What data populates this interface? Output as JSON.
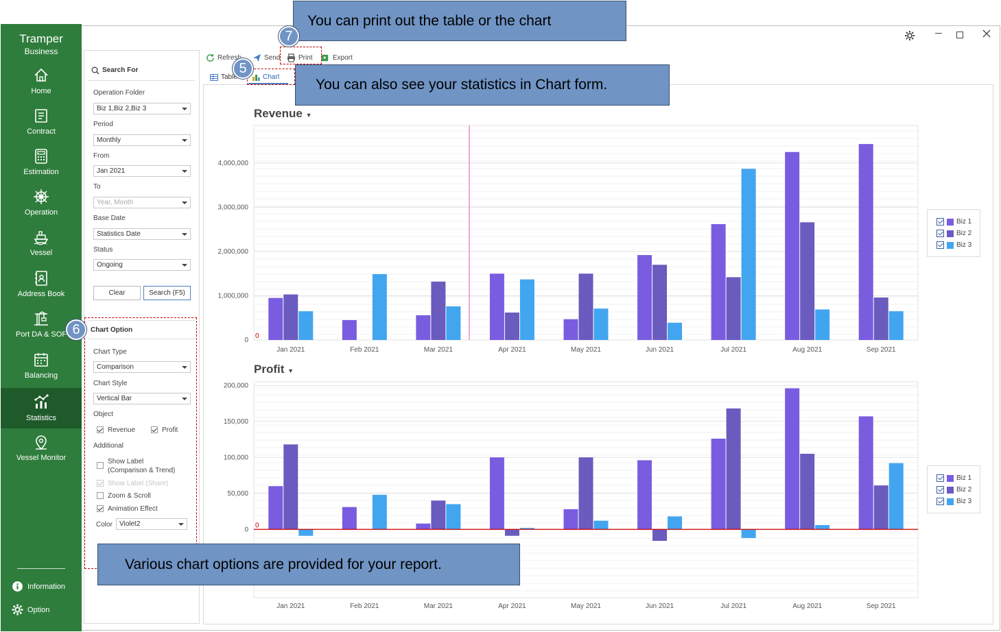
{
  "brand": {
    "name": "Tramper",
    "sub": "Business"
  },
  "nav": [
    {
      "label": "Home",
      "icon": "home-icon"
    },
    {
      "label": "Contract",
      "icon": "contract-icon"
    },
    {
      "label": "Estimation",
      "icon": "calculator-icon"
    },
    {
      "label": "Operation",
      "icon": "ship-wheel-icon"
    },
    {
      "label": "Vessel",
      "icon": "ship-icon"
    },
    {
      "label": "Address Book",
      "icon": "address-book-icon"
    },
    {
      "label": "Port DA & SOF",
      "icon": "port-crane-icon"
    },
    {
      "label": "Balancing",
      "icon": "calendar-icon"
    },
    {
      "label": "Statistics",
      "icon": "statistics-icon"
    },
    {
      "label": "Vessel Monitor",
      "icon": "location-pin-icon"
    }
  ],
  "footer": {
    "information": "Information",
    "option": "Option"
  },
  "search": {
    "title": "Search For",
    "operation_folder_label": "Operation Folder",
    "operation_folder": "Biz 1,Biz 2,Biz 3",
    "period_label": "Period",
    "period": "Monthly",
    "from_label": "From",
    "from": "Jan 2021",
    "to_label": "To",
    "to_placeholder": "Year, Month",
    "base_date_label": "Base Date",
    "base_date": "Statistics Date",
    "status_label": "Status",
    "status": "Ongoing",
    "clear": "Clear",
    "search_btn": "Search (F5)"
  },
  "chart_option": {
    "title": "Chart Option",
    "chart_type_label": "Chart Type",
    "chart_type": "Comparison",
    "chart_style_label": "Chart Style",
    "chart_style": "Vertical Bar",
    "object_label": "Object",
    "revenue": "Revenue",
    "profit": "Profit",
    "additional_label": "Additional",
    "show_label_1": "Show Label",
    "show_label_2": "(Comparison & Trend)",
    "show_label_share": "Show Label (Share)",
    "zoom": "Zoom & Scroll",
    "animation": "Animation Effect",
    "color_label": "Color",
    "color": "Violet2"
  },
  "toolbar": {
    "refresh": "Refresh",
    "send": "Send",
    "print": "Print",
    "export": "Export"
  },
  "tabs": {
    "table": "Table",
    "chart": "Chart"
  },
  "callouts": {
    "print": "You can print out the table or the chart",
    "chart": "You can also see your statistics in Chart form.",
    "options": "Various chart options are provided for your report.",
    "n7": "7",
    "n5": "5",
    "n6": "6"
  },
  "colors": {
    "biz1": "#7a5ce0",
    "biz2": "#6a5bbf",
    "biz3": "#42a5f0",
    "sidebar": "#2f7d3c",
    "callout": "#7094c4"
  },
  "chart_data": [
    {
      "type": "bar",
      "title": "Revenue",
      "categories": [
        "Jan 2021",
        "Feb 2021",
        "Mar 2021",
        "Apr 2021",
        "May 2021",
        "Jun 2021",
        "Jul 2021",
        "Aug 2021",
        "Sep 2021"
      ],
      "series": [
        {
          "name": "Biz 1",
          "values": [
            950000,
            450000,
            560000,
            1500000,
            470000,
            1920000,
            2620000,
            4250000,
            4430000
          ]
        },
        {
          "name": "Biz 2",
          "values": [
            1030000,
            0,
            1320000,
            620000,
            1500000,
            1700000,
            1420000,
            2660000,
            960000
          ]
        },
        {
          "name": "Biz 3",
          "values": [
            650000,
            1490000,
            760000,
            1370000,
            710000,
            390000,
            3870000,
            690000,
            650000
          ]
        }
      ],
      "yticks": [
        0,
        1000000,
        2000000,
        3000000,
        4000000
      ],
      "ytick_labels": [
        "0",
        "1,000,000",
        "2,000,000",
        "3,000,000",
        "4,000,000"
      ],
      "ylim": [
        0,
        4850000
      ],
      "zero_label": "0",
      "legend": "right",
      "grid": true
    },
    {
      "type": "bar",
      "title": "Profit",
      "categories": [
        "Jan 2021",
        "Feb 2021",
        "Mar 2021",
        "Apr 2021",
        "May 2021",
        "Jun 2021",
        "Jul 2021",
        "Aug 2021",
        "Sep 2021"
      ],
      "series": [
        {
          "name": "Biz 1",
          "values": [
            60000,
            31000,
            8000,
            100000,
            28000,
            96000,
            126000,
            196000,
            157000
          ]
        },
        {
          "name": "Biz 2",
          "values": [
            118000,
            0,
            40000,
            -9000,
            100000,
            -16000,
            168000,
            105000,
            61000
          ]
        },
        {
          "name": "Biz 3",
          "values": [
            -9000,
            48000,
            35000,
            2000,
            12000,
            18000,
            -12000,
            6000,
            92000
          ]
        }
      ],
      "yticks": [
        0,
        50000,
        100000,
        150000,
        200000
      ],
      "ytick_labels": [
        "0",
        "50,000",
        "100,000",
        "150,000",
        "200,000"
      ],
      "ylim": [
        -95000,
        205000
      ],
      "zero_label": "0",
      "legend": "right",
      "grid": true
    }
  ]
}
